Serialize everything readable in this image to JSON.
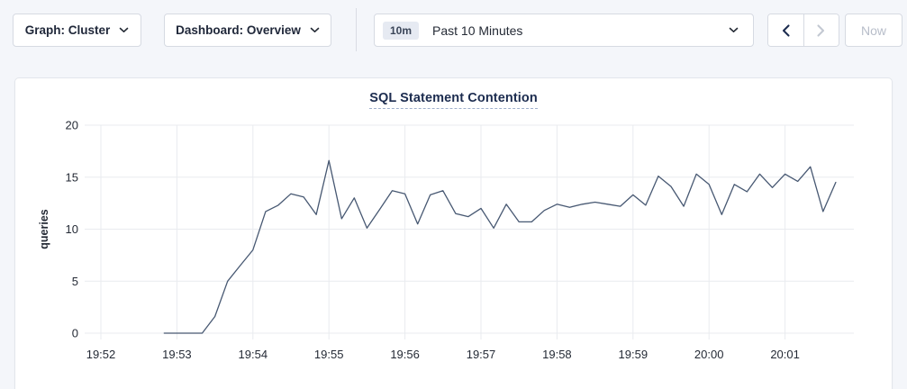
{
  "toolbar": {
    "graph_dropdown_label": "Graph: Cluster",
    "dashboard_dropdown_label": "Dashboard: Overview",
    "time_picker": {
      "badge": "10m",
      "label": "Past 10 Minutes"
    },
    "now_button_label": "Now"
  },
  "chart_card": {
    "title": "SQL Statement Contention"
  },
  "chart_data": {
    "type": "line",
    "title": "SQL Statement Contention",
    "xlabel": "",
    "ylabel": "queries",
    "ylim": [
      0,
      20
    ],
    "y_ticks": [
      0,
      5,
      10,
      15,
      20
    ],
    "x_tick_labels": [
      "19:52",
      "19:53",
      "19:54",
      "19:55",
      "19:56",
      "19:57",
      "19:58",
      "19:59",
      "20:00",
      "20:01"
    ],
    "grid": true,
    "legend_position": "none",
    "series": [
      {
        "name": "queries",
        "color": "#475872",
        "start_time": "19:52:50",
        "interval_seconds": 10,
        "values": [
          0,
          0,
          0,
          0,
          1.6,
          5.0,
          6.5,
          8.0,
          11.7,
          12.3,
          13.4,
          13.1,
          11.4,
          16.6,
          11.0,
          13.0,
          10.1,
          11.9,
          13.7,
          13.4,
          10.5,
          13.3,
          13.7,
          11.5,
          11.2,
          12.0,
          10.1,
          12.4,
          10.7,
          10.7,
          11.8,
          12.4,
          12.1,
          12.4,
          12.6,
          12.4,
          12.2,
          13.3,
          12.3,
          15.1,
          14.1,
          12.2,
          15.3,
          14.3,
          11.4,
          14.3,
          13.6,
          15.3,
          14.0,
          15.3,
          14.6,
          16.0,
          11.7,
          14.5
        ]
      }
    ]
  },
  "colors": {
    "page_bg": "#f4f6fa",
    "card_bg": "#ffffff",
    "button_border": "#d6dae2",
    "title_color": "#1c2c4f",
    "line_color": "#475872",
    "grid_color": "#e9ebef",
    "axis_text": "#242a35",
    "disabled_text": "#b7bdc9",
    "badge_bg": "#e6eaf2"
  }
}
